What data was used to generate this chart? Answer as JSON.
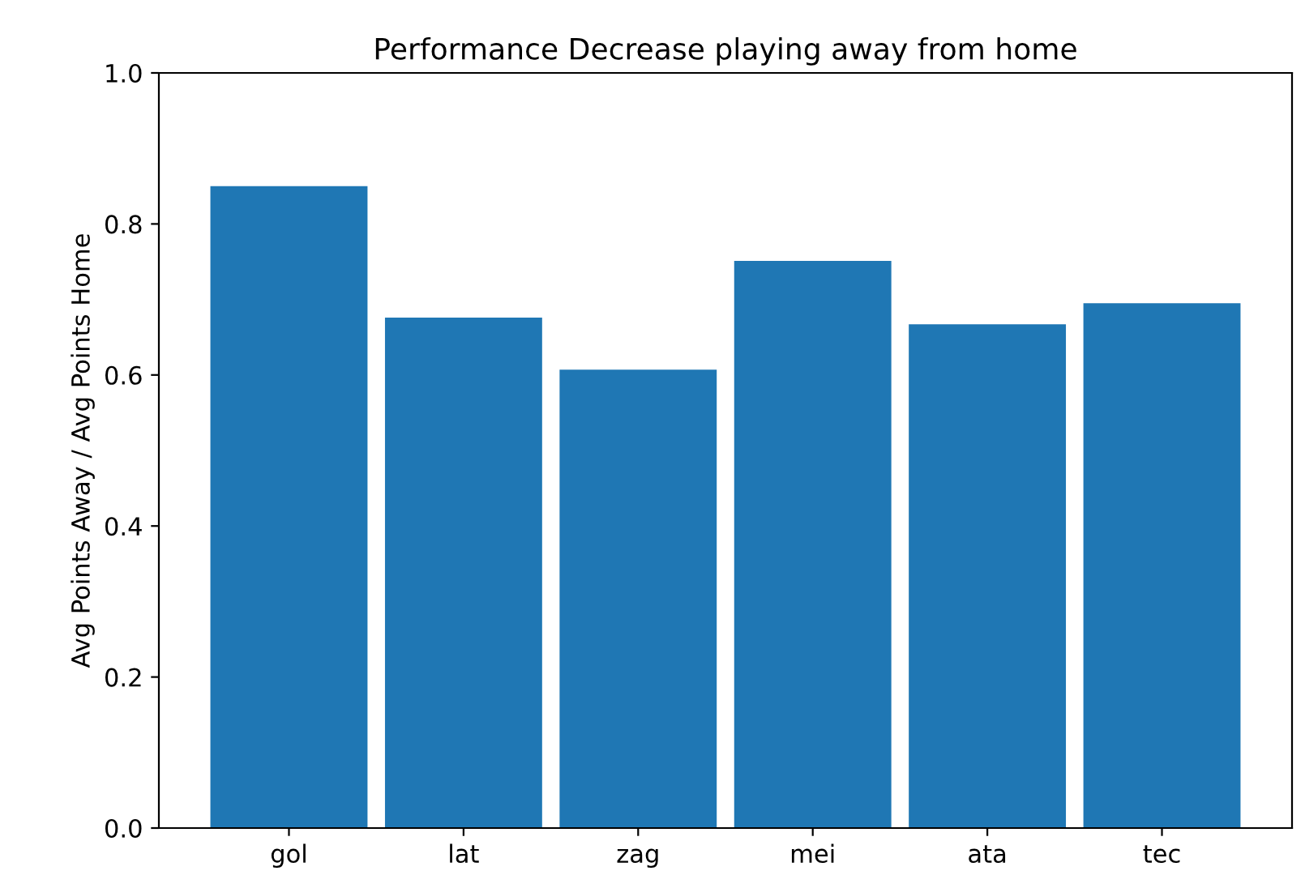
{
  "chart_data": {
    "type": "bar",
    "title": "Performance Decrease playing away from home",
    "ylabel": "Avg Points Away / Avg Points Home",
    "categories": [
      "gol",
      "lat",
      "zag",
      "mei",
      "ata",
      "tec"
    ],
    "values": [
      0.85,
      0.676,
      0.607,
      0.751,
      0.667,
      0.695
    ],
    "color": "#1f77b4",
    "ylim": [
      0,
      1.0
    ],
    "yticks": [
      {
        "value": 0,
        "label": "0.0"
      },
      {
        "value": 0.2,
        "label": "0.2"
      },
      {
        "value": 0.4,
        "label": "0.4"
      },
      {
        "value": 0.6,
        "label": "0.6"
      },
      {
        "value": 0.8,
        "label": "0.8"
      },
      {
        "value": 1.0,
        "label": "1.0"
      }
    ],
    "grid": false
  }
}
